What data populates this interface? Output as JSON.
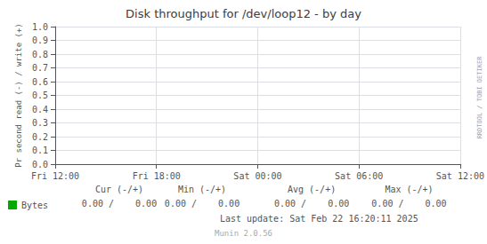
{
  "chart_data": {
    "type": "line",
    "title": "Disk throughput for /dev/loop12 - by day",
    "ylabel": "Pr second read (-) / write (+)",
    "categories": [
      "Fri 12:00",
      "Fri 18:00",
      "Sat 00:00",
      "Sat 06:00",
      "Sat 12:00"
    ],
    "series": [
      {
        "name": "Bytes",
        "color": "#00aa00",
        "values": [
          null,
          null,
          null,
          null,
          null
        ]
      }
    ],
    "ylim": [
      0.0,
      1.0
    ],
    "yticks": [
      {
        "value": 0,
        "label": "0.0"
      },
      0.1,
      0.2,
      0.3,
      0.4,
      0.5,
      0.6,
      0.7,
      0.8,
      0.9,
      {
        "value": 1,
        "label": "1.0"
      }
    ],
    "grid": true,
    "legend": "bottom-left",
    "annotations": [
      "Cur (-/+)",
      "Min (-/+)",
      "Avg (-/+)",
      "Max (-/+)",
      "0.00 /    0.00",
      "0.00 /    0.00",
      "0.00 /    0.00",
      "0.00 /    0.00",
      "Last update: Sat Feb 22 16:20:11 2025",
      "Munin 2.0.56",
      "RRDTOOL / TOBI OETIKER"
    ]
  }
}
